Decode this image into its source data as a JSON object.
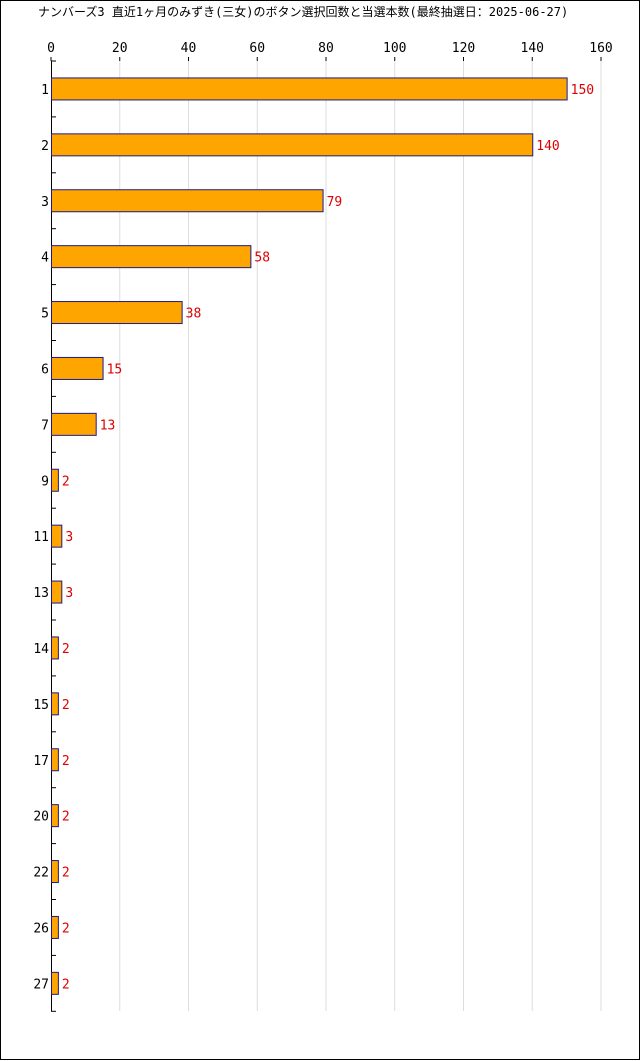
{
  "chart_data": {
    "type": "bar",
    "orientation": "horizontal",
    "title": "ナンバーズ3 直近1ヶ月のみずき(三女)のボタン選択回数と当選本数(最終抽選日：2025-06-27)",
    "xlabel": "",
    "ylabel": "",
    "xlim": [
      0,
      160
    ],
    "x_ticks": [
      0,
      20,
      40,
      60,
      80,
      100,
      120,
      140,
      160
    ],
    "grid": true,
    "categories": [
      "1",
      "2",
      "3",
      "4",
      "5",
      "6",
      "7",
      "9",
      "11",
      "13",
      "14",
      "15",
      "17",
      "20",
      "22",
      "26",
      "27"
    ],
    "values": [
      150,
      140,
      79,
      58,
      38,
      15,
      13,
      2,
      3,
      3,
      2,
      2,
      2,
      2,
      2,
      2,
      2
    ],
    "colors": {
      "bar_fill": "#FFA500",
      "bar_stroke": "#1A1A8C",
      "value_label": "#E00000",
      "grid": "#DDDDDD",
      "axis": "#000000"
    }
  }
}
